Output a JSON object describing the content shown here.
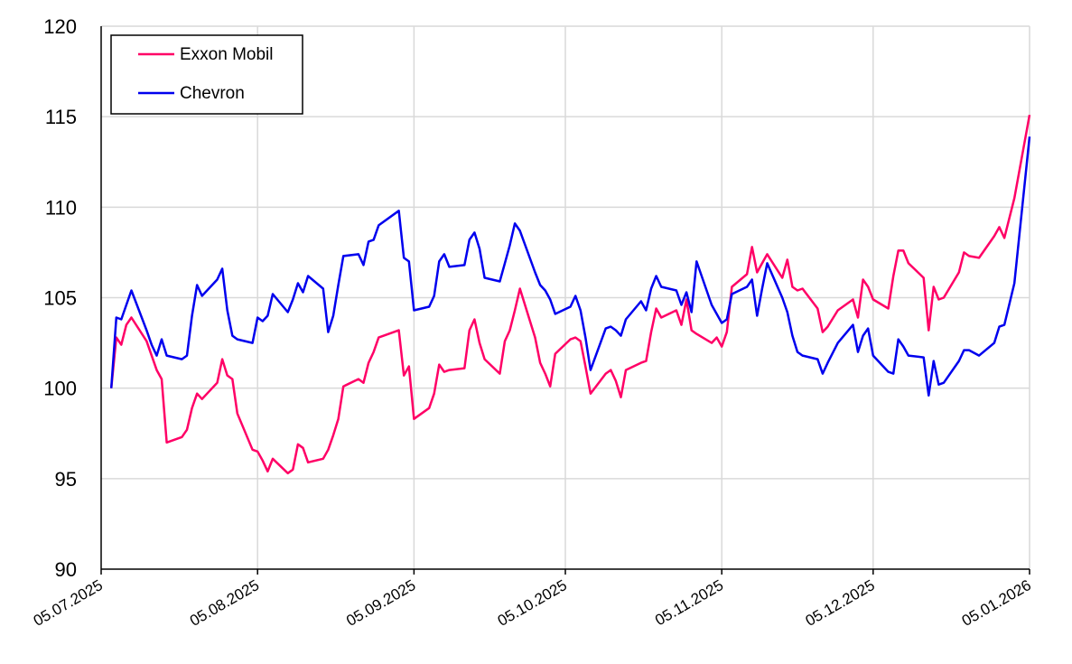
{
  "chart_data": {
    "type": "line",
    "title": "",
    "xlabel": "",
    "ylabel": "",
    "ylim": [
      90,
      120
    ],
    "yticks": [
      90,
      95,
      100,
      105,
      110,
      115,
      120
    ],
    "xlim": [
      "2025-07-05",
      "2026-01-05"
    ],
    "xticks": [
      {
        "label": "05.07.2025",
        "date": "2025-07-05"
      },
      {
        "label": "05.08.2025",
        "date": "2025-08-05"
      },
      {
        "label": "05.09.2025",
        "date": "2025-09-05"
      },
      {
        "label": "05.10.2025",
        "date": "2025-10-05"
      },
      {
        "label": "05.11.2025",
        "date": "2025-11-05"
      },
      {
        "label": "05.12.2025",
        "date": "2025-12-05"
      },
      {
        "label": "05.01.2026",
        "date": "2026-01-05"
      }
    ],
    "grid": true,
    "legend": "top-left",
    "series": [
      {
        "name": "Exxon Mobil",
        "color": "#ff0066",
        "points": [
          [
            "2025-07-07",
            100.0
          ],
          [
            "2025-07-08",
            102.8
          ],
          [
            "2025-07-09",
            102.4
          ],
          [
            "2025-07-10",
            103.5
          ],
          [
            "2025-07-11",
            103.9
          ],
          [
            "2025-07-14",
            102.6
          ],
          [
            "2025-07-15",
            101.8
          ],
          [
            "2025-07-16",
            101.0
          ],
          [
            "2025-07-17",
            100.5
          ],
          [
            "2025-07-18",
            97.0
          ],
          [
            "2025-07-21",
            97.3
          ],
          [
            "2025-07-22",
            97.7
          ],
          [
            "2025-07-23",
            98.9
          ],
          [
            "2025-07-24",
            99.7
          ],
          [
            "2025-07-25",
            99.4
          ],
          [
            "2025-07-28",
            100.3
          ],
          [
            "2025-07-29",
            101.6
          ],
          [
            "2025-07-30",
            100.7
          ],
          [
            "2025-07-31",
            100.5
          ],
          [
            "2025-08-01",
            98.6
          ],
          [
            "2025-08-04",
            96.6
          ],
          [
            "2025-08-05",
            96.5
          ],
          [
            "2025-08-06",
            96.0
          ],
          [
            "2025-08-07",
            95.4
          ],
          [
            "2025-08-08",
            96.1
          ],
          [
            "2025-08-11",
            95.3
          ],
          [
            "2025-08-12",
            95.5
          ],
          [
            "2025-08-13",
            96.9
          ],
          [
            "2025-08-14",
            96.7
          ],
          [
            "2025-08-15",
            95.9
          ],
          [
            "2025-08-18",
            96.1
          ],
          [
            "2025-08-19",
            96.6
          ],
          [
            "2025-08-20",
            97.4
          ],
          [
            "2025-08-21",
            98.3
          ],
          [
            "2025-08-22",
            100.1
          ],
          [
            "2025-08-25",
            100.5
          ],
          [
            "2025-08-26",
            100.3
          ],
          [
            "2025-08-27",
            101.4
          ],
          [
            "2025-08-28",
            102.0
          ],
          [
            "2025-08-29",
            102.8
          ],
          [
            "2025-09-02",
            103.2
          ],
          [
            "2025-09-03",
            100.7
          ],
          [
            "2025-09-04",
            101.2
          ],
          [
            "2025-09-05",
            98.3
          ],
          [
            "2025-09-08",
            98.9
          ],
          [
            "2025-09-09",
            99.7
          ],
          [
            "2025-09-10",
            101.3
          ],
          [
            "2025-09-11",
            100.9
          ],
          [
            "2025-09-12",
            101.0
          ],
          [
            "2025-09-15",
            101.1
          ],
          [
            "2025-09-16",
            103.2
          ],
          [
            "2025-09-17",
            103.8
          ],
          [
            "2025-09-18",
            102.5
          ],
          [
            "2025-09-19",
            101.6
          ],
          [
            "2025-09-22",
            100.8
          ],
          [
            "2025-09-23",
            102.6
          ],
          [
            "2025-09-24",
            103.2
          ],
          [
            "2025-09-25",
            104.3
          ],
          [
            "2025-09-26",
            105.5
          ],
          [
            "2025-09-29",
            102.8
          ],
          [
            "2025-09-30",
            101.4
          ],
          [
            "2025-10-01",
            100.8
          ],
          [
            "2025-10-02",
            100.1
          ],
          [
            "2025-10-03",
            101.9
          ],
          [
            "2025-10-06",
            102.7
          ],
          [
            "2025-10-07",
            102.8
          ],
          [
            "2025-10-08",
            102.6
          ],
          [
            "2025-10-09",
            101.2
          ],
          [
            "2025-10-10",
            99.7
          ],
          [
            "2025-10-13",
            100.8
          ],
          [
            "2025-10-14",
            101.0
          ],
          [
            "2025-10-15",
            100.4
          ],
          [
            "2025-10-16",
            99.5
          ],
          [
            "2025-10-17",
            101.0
          ],
          [
            "2025-10-20",
            101.4
          ],
          [
            "2025-10-21",
            101.5
          ],
          [
            "2025-10-22",
            103.1
          ],
          [
            "2025-10-23",
            104.4
          ],
          [
            "2025-10-24",
            103.9
          ],
          [
            "2025-10-27",
            104.3
          ],
          [
            "2025-10-28",
            103.5
          ],
          [
            "2025-10-29",
            104.9
          ],
          [
            "2025-10-30",
            103.2
          ],
          [
            "2025-10-31",
            103.0
          ],
          [
            "2025-11-03",
            102.5
          ],
          [
            "2025-11-04",
            102.8
          ],
          [
            "2025-11-05",
            102.3
          ],
          [
            "2025-11-06",
            103.1
          ],
          [
            "2025-11-07",
            105.6
          ],
          [
            "2025-11-10",
            106.3
          ],
          [
            "2025-11-11",
            107.8
          ],
          [
            "2025-11-12",
            106.4
          ],
          [
            "2025-11-13",
            106.9
          ],
          [
            "2025-11-14",
            107.4
          ],
          [
            "2025-11-17",
            106.1
          ],
          [
            "2025-11-18",
            107.1
          ],
          [
            "2025-11-19",
            105.6
          ],
          [
            "2025-11-20",
            105.4
          ],
          [
            "2025-11-21",
            105.5
          ],
          [
            "2025-11-24",
            104.4
          ],
          [
            "2025-11-25",
            103.1
          ],
          [
            "2025-11-26",
            103.4
          ],
          [
            "2025-11-28",
            104.3
          ],
          [
            "2025-12-01",
            104.9
          ],
          [
            "2025-12-02",
            103.9
          ],
          [
            "2025-12-03",
            106.0
          ],
          [
            "2025-12-04",
            105.6
          ],
          [
            "2025-12-05",
            104.9
          ],
          [
            "2025-12-08",
            104.4
          ],
          [
            "2025-12-09",
            106.2
          ],
          [
            "2025-12-10",
            107.6
          ],
          [
            "2025-12-11",
            107.6
          ],
          [
            "2025-12-12",
            106.9
          ],
          [
            "2025-12-15",
            106.1
          ],
          [
            "2025-12-16",
            103.2
          ],
          [
            "2025-12-17",
            105.6
          ],
          [
            "2025-12-18",
            104.9
          ],
          [
            "2025-12-19",
            105.0
          ],
          [
            "2025-12-22",
            106.4
          ],
          [
            "2025-12-23",
            107.5
          ],
          [
            "2025-12-24",
            107.3
          ],
          [
            "2025-12-26",
            107.2
          ],
          [
            "2025-12-29",
            108.4
          ],
          [
            "2025-12-30",
            108.9
          ],
          [
            "2025-12-31",
            108.3
          ],
          [
            "2026-01-02",
            110.5
          ],
          [
            "2026-01-05",
            115.1
          ]
        ]
      },
      {
        "name": "Chevron",
        "color": "#0000ee",
        "points": [
          [
            "2025-07-07",
            100.0
          ],
          [
            "2025-07-08",
            103.9
          ],
          [
            "2025-07-09",
            103.8
          ],
          [
            "2025-07-10",
            104.6
          ],
          [
            "2025-07-11",
            105.4
          ],
          [
            "2025-07-14",
            103.2
          ],
          [
            "2025-07-15",
            102.4
          ],
          [
            "2025-07-16",
            101.8
          ],
          [
            "2025-07-17",
            102.7
          ],
          [
            "2025-07-18",
            101.8
          ],
          [
            "2025-07-21",
            101.6
          ],
          [
            "2025-07-22",
            101.8
          ],
          [
            "2025-07-23",
            104.0
          ],
          [
            "2025-07-24",
            105.7
          ],
          [
            "2025-07-25",
            105.1
          ],
          [
            "2025-07-28",
            106.0
          ],
          [
            "2025-07-29",
            106.6
          ],
          [
            "2025-07-30",
            104.3
          ],
          [
            "2025-07-31",
            102.9
          ],
          [
            "2025-08-01",
            102.7
          ],
          [
            "2025-08-04",
            102.5
          ],
          [
            "2025-08-05",
            103.9
          ],
          [
            "2025-08-06",
            103.7
          ],
          [
            "2025-08-07",
            104.0
          ],
          [
            "2025-08-08",
            105.2
          ],
          [
            "2025-08-11",
            104.2
          ],
          [
            "2025-08-12",
            104.9
          ],
          [
            "2025-08-13",
            105.8
          ],
          [
            "2025-08-14",
            105.3
          ],
          [
            "2025-08-15",
            106.2
          ],
          [
            "2025-08-18",
            105.5
          ],
          [
            "2025-08-19",
            103.1
          ],
          [
            "2025-08-20",
            104.0
          ],
          [
            "2025-08-21",
            105.7
          ],
          [
            "2025-08-22",
            107.3
          ],
          [
            "2025-08-25",
            107.4
          ],
          [
            "2025-08-26",
            106.8
          ],
          [
            "2025-08-27",
            108.1
          ],
          [
            "2025-08-28",
            108.2
          ],
          [
            "2025-08-29",
            109.0
          ],
          [
            "2025-09-02",
            109.8
          ],
          [
            "2025-09-03",
            107.2
          ],
          [
            "2025-09-04",
            107.0
          ],
          [
            "2025-09-05",
            104.3
          ],
          [
            "2025-09-08",
            104.5
          ],
          [
            "2025-09-09",
            105.1
          ],
          [
            "2025-09-10",
            107.0
          ],
          [
            "2025-09-11",
            107.4
          ],
          [
            "2025-09-12",
            106.7
          ],
          [
            "2025-09-15",
            106.8
          ],
          [
            "2025-09-16",
            108.2
          ],
          [
            "2025-09-17",
            108.6
          ],
          [
            "2025-09-18",
            107.7
          ],
          [
            "2025-09-19",
            106.1
          ],
          [
            "2025-09-22",
            105.9
          ],
          [
            "2025-09-23",
            106.9
          ],
          [
            "2025-09-24",
            107.9
          ],
          [
            "2025-09-25",
            109.1
          ],
          [
            "2025-09-26",
            108.7
          ],
          [
            "2025-09-29",
            106.4
          ],
          [
            "2025-09-30",
            105.7
          ],
          [
            "2025-10-01",
            105.4
          ],
          [
            "2025-10-02",
            104.9
          ],
          [
            "2025-10-03",
            104.1
          ],
          [
            "2025-10-06",
            104.5
          ],
          [
            "2025-10-07",
            105.1
          ],
          [
            "2025-10-08",
            104.3
          ],
          [
            "2025-10-09",
            102.8
          ],
          [
            "2025-10-10",
            101.0
          ],
          [
            "2025-10-13",
            103.3
          ],
          [
            "2025-10-14",
            103.4
          ],
          [
            "2025-10-15",
            103.2
          ],
          [
            "2025-10-16",
            102.9
          ],
          [
            "2025-10-17",
            103.8
          ],
          [
            "2025-10-20",
            104.8
          ],
          [
            "2025-10-21",
            104.3
          ],
          [
            "2025-10-22",
            105.5
          ],
          [
            "2025-10-23",
            106.2
          ],
          [
            "2025-10-24",
            105.6
          ],
          [
            "2025-10-27",
            105.4
          ],
          [
            "2025-10-28",
            104.6
          ],
          [
            "2025-10-29",
            105.3
          ],
          [
            "2025-10-30",
            104.2
          ],
          [
            "2025-10-31",
            107.0
          ],
          [
            "2025-11-03",
            104.6
          ],
          [
            "2025-11-04",
            104.1
          ],
          [
            "2025-11-05",
            103.6
          ],
          [
            "2025-11-06",
            103.8
          ],
          [
            "2025-11-07",
            105.2
          ],
          [
            "2025-11-10",
            105.6
          ],
          [
            "2025-11-11",
            106.0
          ],
          [
            "2025-11-12",
            104.0
          ],
          [
            "2025-11-13",
            105.5
          ],
          [
            "2025-11-14",
            106.9
          ],
          [
            "2025-11-17",
            105.0
          ],
          [
            "2025-11-18",
            104.2
          ],
          [
            "2025-11-19",
            102.9
          ],
          [
            "2025-11-20",
            102.0
          ],
          [
            "2025-11-21",
            101.8
          ],
          [
            "2025-11-24",
            101.6
          ],
          [
            "2025-11-25",
            100.8
          ],
          [
            "2025-11-26",
            101.4
          ],
          [
            "2025-11-28",
            102.5
          ],
          [
            "2025-12-01",
            103.5
          ],
          [
            "2025-12-02",
            102.0
          ],
          [
            "2025-12-03",
            102.9
          ],
          [
            "2025-12-04",
            103.3
          ],
          [
            "2025-12-05",
            101.8
          ],
          [
            "2025-12-08",
            100.9
          ],
          [
            "2025-12-09",
            100.8
          ],
          [
            "2025-12-10",
            102.7
          ],
          [
            "2025-12-11",
            102.3
          ],
          [
            "2025-12-12",
            101.8
          ],
          [
            "2025-12-15",
            101.7
          ],
          [
            "2025-12-16",
            99.6
          ],
          [
            "2025-12-17",
            101.5
          ],
          [
            "2025-12-18",
            100.2
          ],
          [
            "2025-12-19",
            100.3
          ],
          [
            "2025-12-22",
            101.5
          ],
          [
            "2025-12-23",
            102.1
          ],
          [
            "2025-12-24",
            102.1
          ],
          [
            "2025-12-26",
            101.8
          ],
          [
            "2025-12-29",
            102.5
          ],
          [
            "2025-12-30",
            103.4
          ],
          [
            "2025-12-31",
            103.5
          ],
          [
            "2026-01-02",
            105.8
          ],
          [
            "2026-01-05",
            113.9
          ]
        ]
      }
    ]
  }
}
